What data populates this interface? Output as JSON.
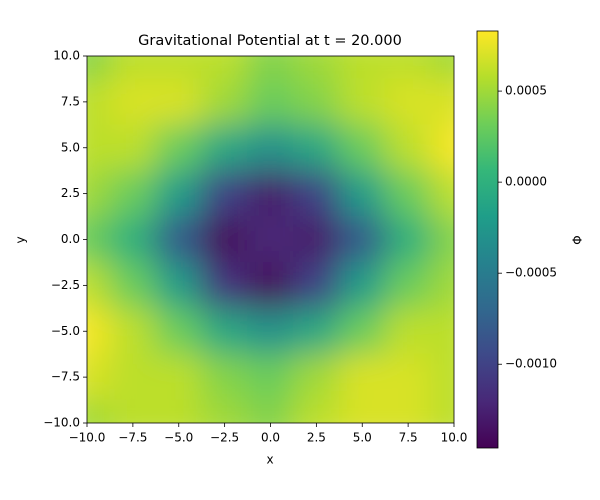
{
  "chart_data": {
    "type": "heatmap",
    "title": "Gravitational Potential at t = 20.000",
    "x_label": "x",
    "y_label": "y",
    "colorbar_label": "Φ",
    "colormap": "viridis",
    "x": [
      -10,
      -7.5,
      -5,
      -2.5,
      0,
      2.5,
      5,
      7.5,
      10
    ],
    "y": [
      10,
      7.5,
      5,
      2.5,
      0,
      -2.5,
      -5,
      -7.5,
      -10
    ],
    "z": [
      [
        0.0004,
        0.0006,
        0.0006,
        0.0006,
        0.0004,
        0.0005,
        0.0006,
        0.0006,
        0.0005
      ],
      [
        0.0006,
        0.0007,
        0.0007,
        0.0005,
        0.0003,
        0.0004,
        0.0006,
        0.0007,
        0.0007
      ],
      [
        0.0006,
        0.0006,
        0.0003,
        -0.0001,
        -0.0003,
        -0.0001,
        0.0003,
        0.0006,
        0.0008
      ],
      [
        0.0005,
        0.0003,
        -0.0002,
        -0.001,
        -0.0013,
        -0.001,
        -0.0002,
        0.0003,
        0.0006
      ],
      [
        0.0003,
        0.0,
        -0.0008,
        -0.0014,
        -0.0012,
        -0.0013,
        -0.0008,
        0.0,
        0.0004
      ],
      [
        0.0006,
        0.0003,
        -0.0002,
        -0.0011,
        -0.0014,
        -0.001,
        -0.0002,
        0.0003,
        0.0005
      ],
      [
        0.0008,
        0.0006,
        0.0003,
        -0.0001,
        -0.0003,
        -0.0001,
        0.0003,
        0.0006,
        0.0006
      ],
      [
        0.0007,
        0.0006,
        0.0006,
        0.0004,
        0.0003,
        0.0005,
        0.0007,
        0.0007,
        0.0006
      ],
      [
        0.0005,
        0.0006,
        0.0006,
        0.0005,
        0.0004,
        0.0006,
        0.0007,
        0.0007,
        0.0006
      ]
    ],
    "xlim": [
      -10,
      10
    ],
    "ylim": [
      -10,
      10
    ],
    "xticks": [
      {
        "value": -10,
        "label": "−10.0"
      },
      {
        "value": -7.5,
        "label": "−7.5"
      },
      {
        "value": -5,
        "label": "−5.0"
      },
      {
        "value": -2.5,
        "label": "−2.5"
      },
      {
        "value": 0,
        "label": "0.0"
      },
      2.5,
      {
        "value": 5,
        "label": "5.0"
      },
      7.5,
      {
        "value": 10,
        "label": "10.0"
      }
    ],
    "yticks": [
      {
        "value": -10,
        "label": "−10.0"
      },
      {
        "value": -7.5,
        "label": "−7.5"
      },
      {
        "value": -5,
        "label": "−5.0"
      },
      {
        "value": -2.5,
        "label": "−2.5"
      },
      {
        "value": 0,
        "label": "0.0"
      },
      2.5,
      {
        "value": 5,
        "label": "5.0"
      },
      7.5,
      {
        "value": 10,
        "label": "10.0"
      }
    ],
    "clim": [
      -0.00146,
      0.00083
    ],
    "cticks": [
      {
        "value": -0.001,
        "label": "−0.0010"
      },
      {
        "value": -0.0005,
        "label": "−0.0005"
      },
      {
        "value": 0,
        "label": "0.0000"
      },
      0.0005
    ]
  }
}
